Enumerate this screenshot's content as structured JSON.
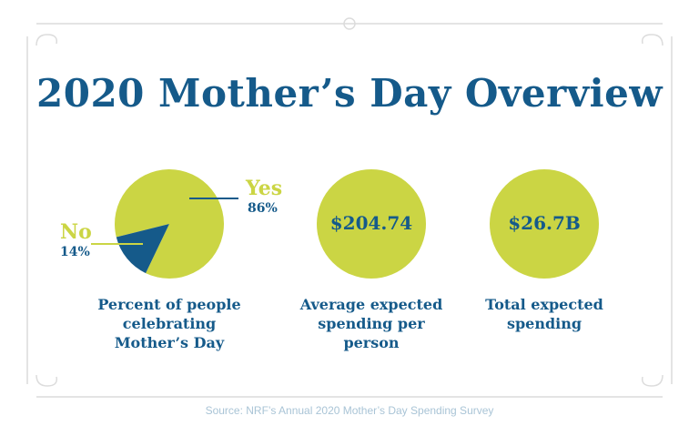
{
  "title": "2020 Mother’s Day Overview",
  "chart_data": {
    "type": "pie",
    "categories": [
      "Yes",
      "No"
    ],
    "values": [
      86,
      14
    ],
    "value_labels": [
      "86%",
      "14%"
    ],
    "colors": [
      "#cbd544",
      "#155a8a"
    ],
    "caption": "Percent of people celebrating Mother’s Day"
  },
  "stats": [
    {
      "value": "$204.74",
      "label": "Average expected spending per person"
    },
    {
      "value": "$26.7B",
      "label": "Total expected spending"
    }
  ],
  "source": "Source: NRF’s Annual 2020 Mother’s Day Spending Survey"
}
